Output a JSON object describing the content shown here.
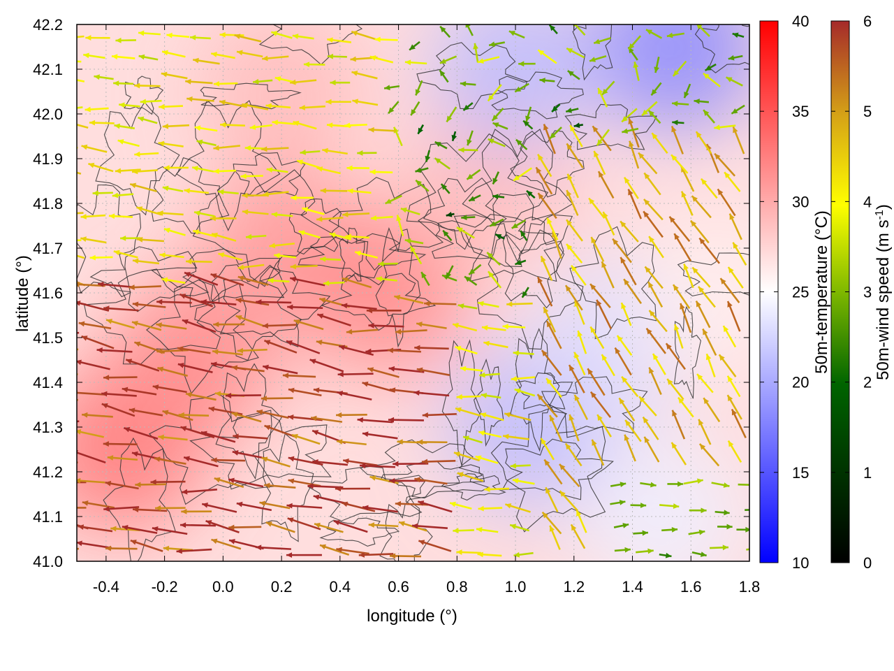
{
  "chart_data": {
    "type": "heatmap",
    "subtype": "temperature field with wind vectors and contours",
    "xlabel": "longitude (°)",
    "ylabel": "latitude (°)",
    "xlim": [
      -0.5,
      1.8
    ],
    "ylim": [
      41.0,
      42.2
    ],
    "x_ticks": [
      "-0.4",
      "-0.2",
      "0.0",
      "0.2",
      "0.4",
      "0.6",
      "0.8",
      "1.0",
      "1.2",
      "1.4",
      "1.6",
      "1.8"
    ],
    "x_tick_values": [
      -0.4,
      -0.2,
      0.0,
      0.2,
      0.4,
      0.6,
      0.8,
      1.0,
      1.2,
      1.4,
      1.6,
      1.8
    ],
    "y_ticks": [
      "41.0",
      "41.1",
      "41.2",
      "41.3",
      "41.4",
      "41.5",
      "41.6",
      "41.7",
      "41.8",
      "41.9",
      "42.0",
      "42.1",
      "42.2"
    ],
    "y_tick_values": [
      41.0,
      41.1,
      41.2,
      41.3,
      41.4,
      41.5,
      41.6,
      41.7,
      41.8,
      41.9,
      42.0,
      42.1,
      42.2
    ],
    "grid": true,
    "temperature_colorbar": {
      "label": "50m-temperature (°C)",
      "range": [
        10,
        40
      ],
      "ticks": [
        "10",
        "15",
        "20",
        "25",
        "30",
        "35",
        "40"
      ],
      "tick_values": [
        10,
        15,
        20,
        25,
        30,
        35,
        40
      ],
      "colors": [
        "#0000ff",
        "#ffffff",
        "#ff0000"
      ]
    },
    "wind_colorbar": {
      "label_main": "50m-wind speed (m s",
      "label_sup": "-1",
      "label_end": ")",
      "range": [
        0,
        6
      ],
      "ticks": [
        "0",
        "1",
        "2",
        "3",
        "4",
        "5",
        "6"
      ],
      "tick_values": [
        0,
        1,
        2,
        3,
        4,
        5,
        6
      ],
      "colors": [
        "#000000",
        "#006400",
        "#7fb800",
        "#ffff00",
        "#d4a017",
        "#a52a2a"
      ]
    },
    "temperature_regions": [
      {
        "lon": -0.35,
        "lat": 41.25,
        "temp": 33
      },
      {
        "lon": -0.1,
        "lat": 41.45,
        "temp": 32
      },
      {
        "lon": 0.2,
        "lat": 41.7,
        "temp": 31
      },
      {
        "lon": 0.55,
        "lat": 41.6,
        "temp": 32
      },
      {
        "lon": 0.2,
        "lat": 42.05,
        "temp": 29
      },
      {
        "lon": 0.9,
        "lat": 41.85,
        "temp": 29
      },
      {
        "lon": 1.05,
        "lat": 41.3,
        "temp": 21
      },
      {
        "lon": 1.35,
        "lat": 41.5,
        "temp": 23
      },
      {
        "lon": 1.55,
        "lat": 42.15,
        "temp": 18
      },
      {
        "lon": 1.0,
        "lat": 42.1,
        "temp": 21
      },
      {
        "lon": 1.5,
        "lat": 41.1,
        "temp": 24
      },
      {
        "lon": 1.7,
        "lat": 41.6,
        "temp": 26
      }
    ],
    "wind_regimes": [
      {
        "region": "southwest (lat 41.0-41.6, lon -0.5-0.8)",
        "direction": "westward",
        "speed": 5.8
      },
      {
        "region": "northwest (lat 41.7-42.2, lon -0.5-0.6)",
        "direction": "westward",
        "speed": 3.8
      },
      {
        "region": "north-central (lat 41.6-42.2, lon 0.6-1.6)",
        "direction": "variable",
        "speed": 2.0
      },
      {
        "region": "east (lat 41.3-41.9, lon 1.1-1.8)",
        "direction": "northwestward",
        "speed": 4.8
      },
      {
        "region": "southeast (lat 41.0-41.2, lon 1.3-1.8)",
        "direction": "eastward",
        "speed": 2.3
      }
    ]
  }
}
